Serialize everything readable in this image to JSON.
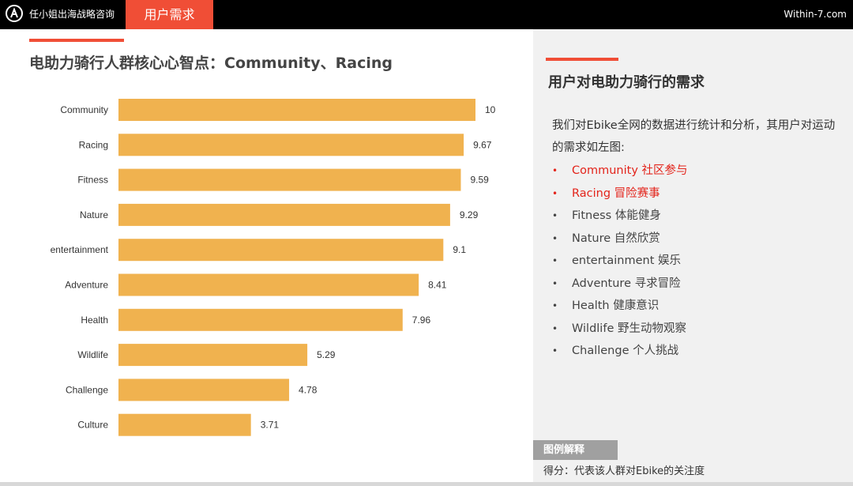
{
  "header": {
    "brand": "任小姐出海战略咨询",
    "active_tab": "用户需求",
    "site": "Within-7.com"
  },
  "chart_title": "电助力骑行人群核心心智点：Community、Racing",
  "chart_data": {
    "type": "bar",
    "orientation": "horizontal",
    "categories": [
      "Community",
      "Racing",
      "Fitness",
      "Nature",
      "entertainment",
      "Adventure",
      "Health",
      "Wildlife",
      "Challenge",
      "Culture"
    ],
    "values": [
      10,
      9.67,
      9.59,
      9.29,
      9.1,
      8.41,
      7.96,
      5.29,
      4.78,
      3.71
    ],
    "value_labels": [
      "10",
      "9.67",
      "9.59",
      "9.29",
      "9.1",
      "8.41",
      "7.96",
      "5.29",
      "4.78",
      "3.71"
    ],
    "xlim": [
      0,
      10
    ],
    "bar_color": "#f0b24f",
    "grid": false,
    "xlabel": "",
    "ylabel": ""
  },
  "right_panel": {
    "heading": "用户对电助力骑行的需求",
    "intro": "我们对Ebike全网的数据进行统计和分析，其用户对运动的需求如左图:",
    "items": [
      {
        "text": "Community 社区参与",
        "highlight": true
      },
      {
        "text": "Racing 冒险赛事",
        "highlight": true
      },
      {
        "text": "Fitness 体能健身",
        "highlight": false
      },
      {
        "text": "Nature 自然欣赏",
        "highlight": false
      },
      {
        "text": "entertainment 娱乐",
        "highlight": false
      },
      {
        "text": "Adventure 寻求冒险",
        "highlight": false
      },
      {
        "text": "Health  健康意识",
        "highlight": false
      },
      {
        "text": "Wildlife 野生动物观察",
        "highlight": false
      },
      {
        "text": "Challenge 个人挑战",
        "highlight": false
      }
    ],
    "bullet": "•",
    "highlight_color": "#e3241b"
  },
  "legend": {
    "title": "图例解释",
    "text": "得分：代表该人群对Ebike的关注度"
  },
  "colors": {
    "accent": "#f04e36",
    "topbar": "#000000",
    "panel_bg": "#f1f1f1"
  }
}
